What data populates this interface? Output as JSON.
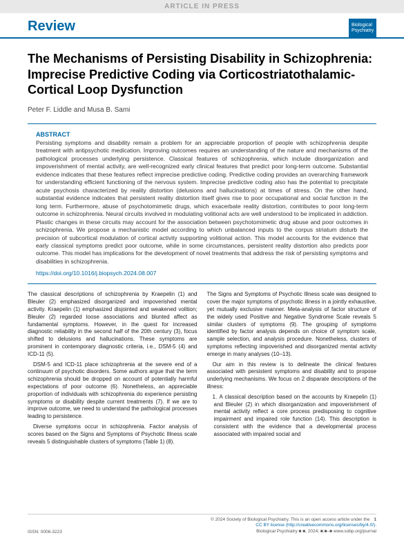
{
  "header": {
    "press_bar": "ARTICLE IN PRESS",
    "review_label": "Review",
    "journal_badge": "Biological\nPsychiatry"
  },
  "article": {
    "title": "The Mechanisms of Persisting Disability in Schizophrenia: Imprecise Predictive Coding via Corticostriatothalamic-Cortical Loop Dysfunction",
    "authors": "Peter F. Liddle and Musa B. Sami"
  },
  "abstract": {
    "label": "ABSTRACT",
    "text": "Persisting symptoms and disability remain a problem for an appreciable proportion of people with schizophrenia despite treatment with antipsychotic medication. Improving outcomes requires an understanding of the nature and mechanisms of the pathological processes underlying persistence. Classical features of schizophrenia, which include disorganization and impoverishment of mental activity, are well-recognized early clinical features that predict poor long-term outcome. Substantial evidence indicates that these features reflect imprecise predictive coding. Predictive coding provides an overarching framework for understanding efficient functioning of the nervous system. Imprecise predictive coding also has the potential to precipitate acute psychosis characterized by reality distortion (delusions and hallucinations) at times of stress. On the other hand, substantial evidence indicates that persistent reality distortion itself gives rise to poor occupational and social function in the long term. Furthermore, abuse of psychotomimetic drugs, which exacerbate reality distortion, contributes to poor long-term outcome in schizophrenia. Neural circuits involved in modulating volitional acts are well understood to be implicated in addiction. Plastic changes in these circuits may account for the association between psychotomimetic drug abuse and poor outcomes in schizophrenia. We propose a mechanistic model according to which unbalanced inputs to the corpus striatum disturb the precision of subcortical modulation of cortical activity supporting volitional action. This model accounts for the evidence that early classical symptoms predict poor outcome, while in some circumstances, persistent reality distortion also predicts poor outcome. This model has implications for the development of novel treatments that address the risk of persisting symptoms and disabilities in schizophrenia.",
    "doi": "https://doi.org/10.1016/j.biopsych.2024.08.007"
  },
  "body": {
    "left": {
      "p1": "The classical descriptions of schizophrenia by Kraepelin (1) and Bleuler (2) emphasized disorganized and impoverished mental activity. Kraepelin (1) emphasized disjointed and weakened volition; Bleuler (2) regarded loose associations and blunted affect as fundamental symptoms. However, in the quest for increased diagnostic reliability in the second half of the 20th century (3), focus shifted to delusions and hallucinations. These symptoms are prominent in contemporary diagnostic criteria, i.e., DSM-5 (4) and ICD-11 (5).",
      "p2": "DSM-5 and ICD-11 place schizophrenia at the severe end of a continuum of psychotic disorders. Some authors argue that the term schizophrenia should be dropped on account of potentially harmful expectations of poor outcome (6). Nonetheless, an appreciable proportion of individuals with schizophrenia do experience persisting symptoms or disability despite current treatments (7). If we are to improve outcome, we need to understand the pathological processes leading to persistence.",
      "p3": "Diverse symptoms occur in schizophrenia. Factor analysis of scores based on the Signs and Symptoms of Psychotic Illness scale reveals 5 distinguishable clusters of symptoms (Table 1) (8)."
    },
    "right": {
      "p1": "The Signs and Symptoms of Psychotic Illness scale was designed to cover the major symptoms of psychotic illness in a jointly exhaustive, yet mutually exclusive manner. Meta-analysis of factor structure of the widely used Positive and Negative Syndrome Scale reveals 5 similar clusters of symptoms (9). The grouping of symptoms identified by factor analysis depends on choice of symptom scale, sample selection, and analysis procedure. Nonetheless, clusters of symptoms reflecting impoverished and disorganized mental activity emerge in many analyses (10–13).",
      "p2": "Our aim in this review is to delineate the clinical features associated with persistent symptoms and disability and to propose underlying mechanisms. We focus on 2 disparate descriptions of the illness:",
      "li1_num": "1.",
      "li1": "A classical description based on the accounts by Kraepelin (1) and Bleuler (2) in which disorganization and impoverishment of mental activity reflect a core process predisposing to cognitive impairment and impaired role function (14). This description is consistent with the evidence that a developmental process associated with impaired social and"
    }
  },
  "footer": {
    "issn": "ISSN: 0006-3223",
    "copyright": "© 2024 Society of Biological Psychiatry. This is an open access article under the",
    "license_line": "CC BY license (http://creativecommons.org/licenses/by/4.0/).",
    "journal_line": "Biological Psychiatry ■ ■, 2024; ■:■–■ www.sobp.org/journal",
    "page": "1"
  }
}
